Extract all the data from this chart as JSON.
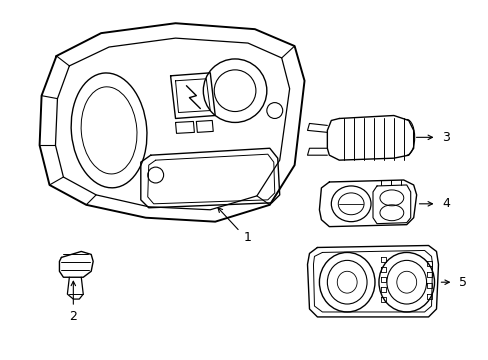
{
  "bg_color": "#ffffff",
  "line_color": "#000000",
  "lw_main": 1.2,
  "lw_detail": 0.8,
  "lw_thin": 0.6
}
